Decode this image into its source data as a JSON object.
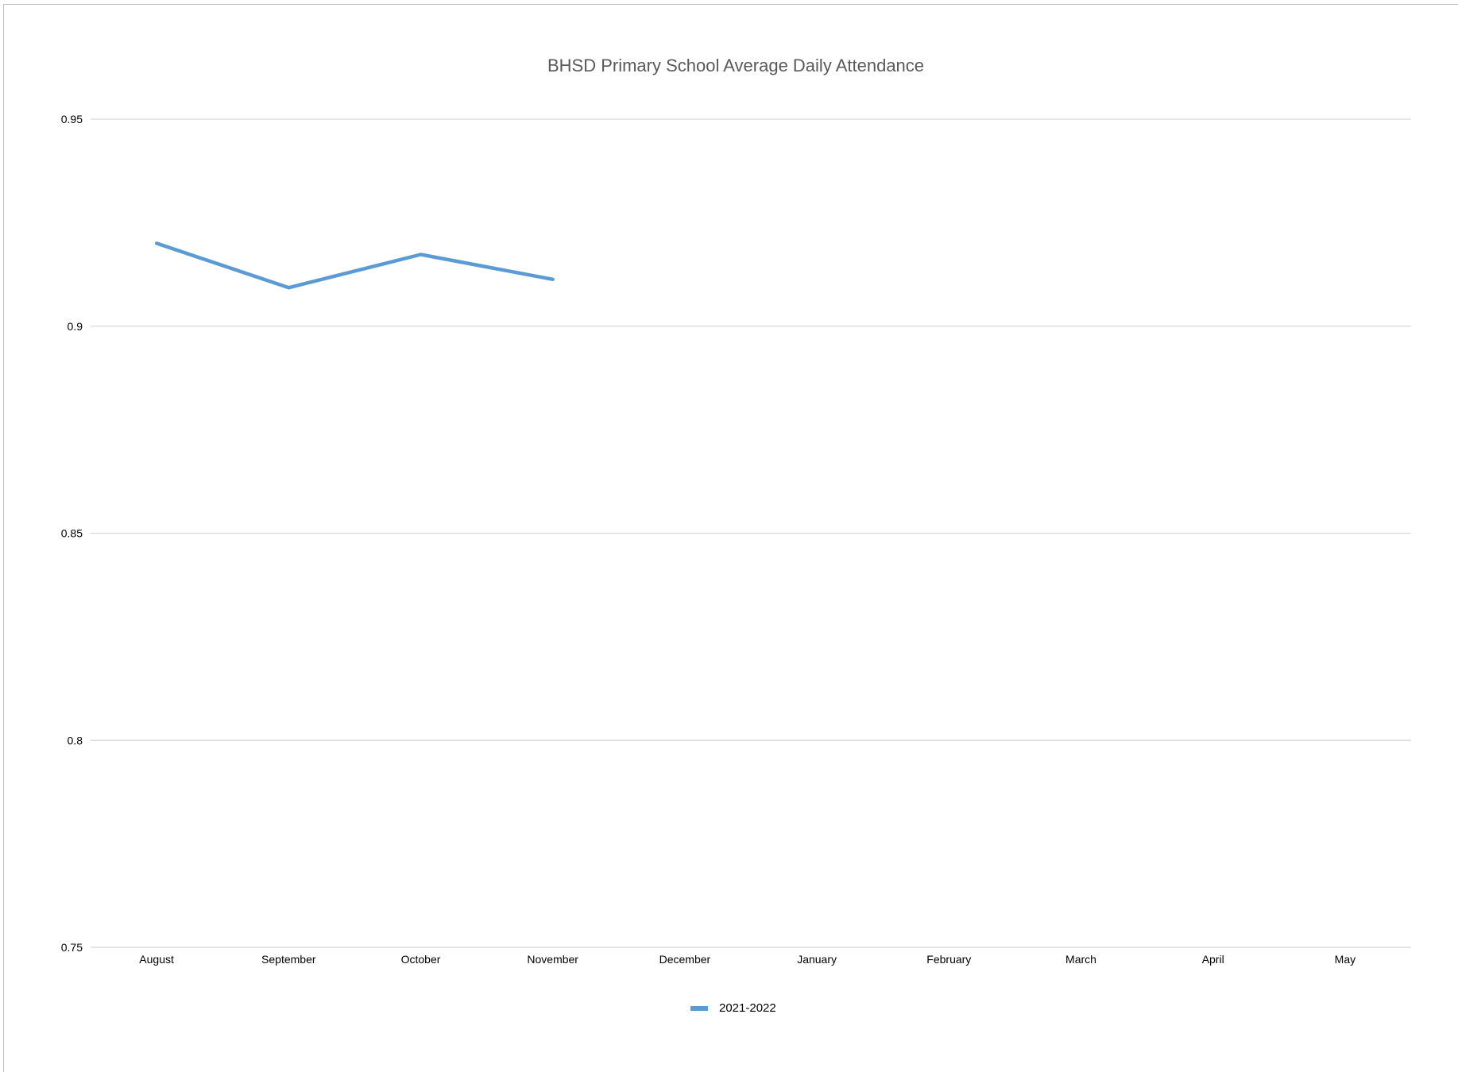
{
  "chart_data": {
    "type": "line",
    "title": "BHSD Primary School Average Daily Attendance",
    "xlabel": "",
    "ylabel": "",
    "categories": [
      "August",
      "September",
      "October",
      "November",
      "December",
      "January",
      "February",
      "March",
      "April",
      "May"
    ],
    "series": [
      {
        "name": "2021-2022",
        "color": "#5b9bd5",
        "values": [
          0.92,
          0.9093,
          0.9173,
          0.9113,
          null,
          null,
          null,
          null,
          null,
          null
        ]
      }
    ],
    "ylim": [
      0.75,
      0.95
    ],
    "yticks": [
      0.95,
      0.9,
      0.85,
      0.8,
      0.75
    ],
    "ytick_labels": [
      "0.95",
      "0.9",
      "0.85",
      "0.8",
      "0.75"
    ],
    "grid": true,
    "legend_position": "bottom"
  }
}
